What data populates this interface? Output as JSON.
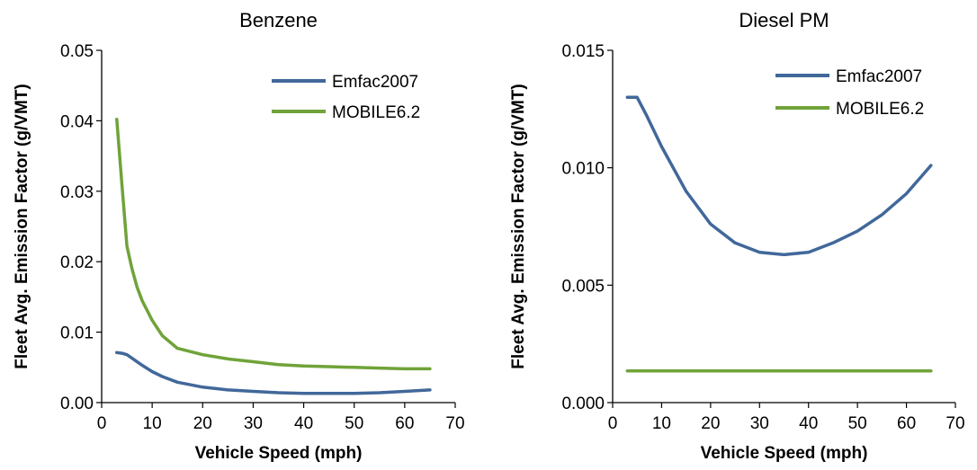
{
  "chart_data": [
    {
      "type": "line",
      "title": "Benzene",
      "xlabel": "Vehicle Speed (mph)",
      "ylabel": "Fleet Avg. Emission Factor (g/VMT)",
      "xlim": [
        0,
        70
      ],
      "ylim": [
        0,
        0.05
      ],
      "xticks": [
        "0",
        "10",
        "20",
        "30",
        "40",
        "50",
        "60",
        "70"
      ],
      "yticks": [
        "0.00",
        "0.01",
        "0.02",
        "0.03",
        "0.04",
        "0.05"
      ],
      "grid": false,
      "legend_position": "top-right",
      "series": [
        {
          "name": "Emfac2007",
          "color": "#41689A",
          "x": [
            3,
            4,
            5,
            6,
            8,
            10,
            12,
            15,
            20,
            25,
            30,
            35,
            40,
            45,
            50,
            55,
            60,
            65
          ],
          "y": [
            0.0071,
            0.007,
            0.0068,
            0.0063,
            0.0053,
            0.0044,
            0.0037,
            0.0029,
            0.0022,
            0.0018,
            0.0016,
            0.0014,
            0.0013,
            0.0013,
            0.0013,
            0.0014,
            0.0016,
            0.0018
          ]
        },
        {
          "name": "MOBILE6.2",
          "color": "#70A339",
          "x": [
            3,
            4,
            5,
            6,
            7,
            8,
            10,
            12,
            15,
            20,
            25,
            30,
            35,
            40,
            45,
            50,
            55,
            60,
            65
          ],
          "y": [
            0.0402,
            0.031,
            0.0222,
            0.019,
            0.0164,
            0.0145,
            0.0117,
            0.0095,
            0.0077,
            0.0068,
            0.0062,
            0.0058,
            0.0054,
            0.0052,
            0.0051,
            0.005,
            0.0049,
            0.0048,
            0.0048
          ]
        }
      ]
    },
    {
      "type": "line",
      "title": "Diesel PM",
      "xlabel": "Vehicle Speed (mph)",
      "ylabel": "Fleet Avg. Emission Factor (g/VMT)",
      "xlim": [
        0,
        70
      ],
      "ylim": [
        0,
        0.015
      ],
      "xticks": [
        "0",
        "10",
        "20",
        "30",
        "40",
        "50",
        "60",
        "70"
      ],
      "yticks": [
        "0.000",
        "0.005",
        "0.010",
        "0.015"
      ],
      "grid": false,
      "legend_position": "top-right",
      "series": [
        {
          "name": "Emfac2007",
          "color": "#41689A",
          "x": [
            3,
            5,
            7,
            10,
            15,
            20,
            25,
            30,
            35,
            40,
            45,
            50,
            55,
            60,
            65
          ],
          "y": [
            0.013,
            0.013,
            0.0122,
            0.0109,
            0.009,
            0.0076,
            0.0068,
            0.0064,
            0.0063,
            0.0064,
            0.0068,
            0.0073,
            0.008,
            0.0089,
            0.0101
          ]
        },
        {
          "name": "MOBILE6.2",
          "color": "#70A339",
          "x": [
            3,
            65
          ],
          "y": [
            0.00135,
            0.00135
          ]
        }
      ]
    }
  ]
}
